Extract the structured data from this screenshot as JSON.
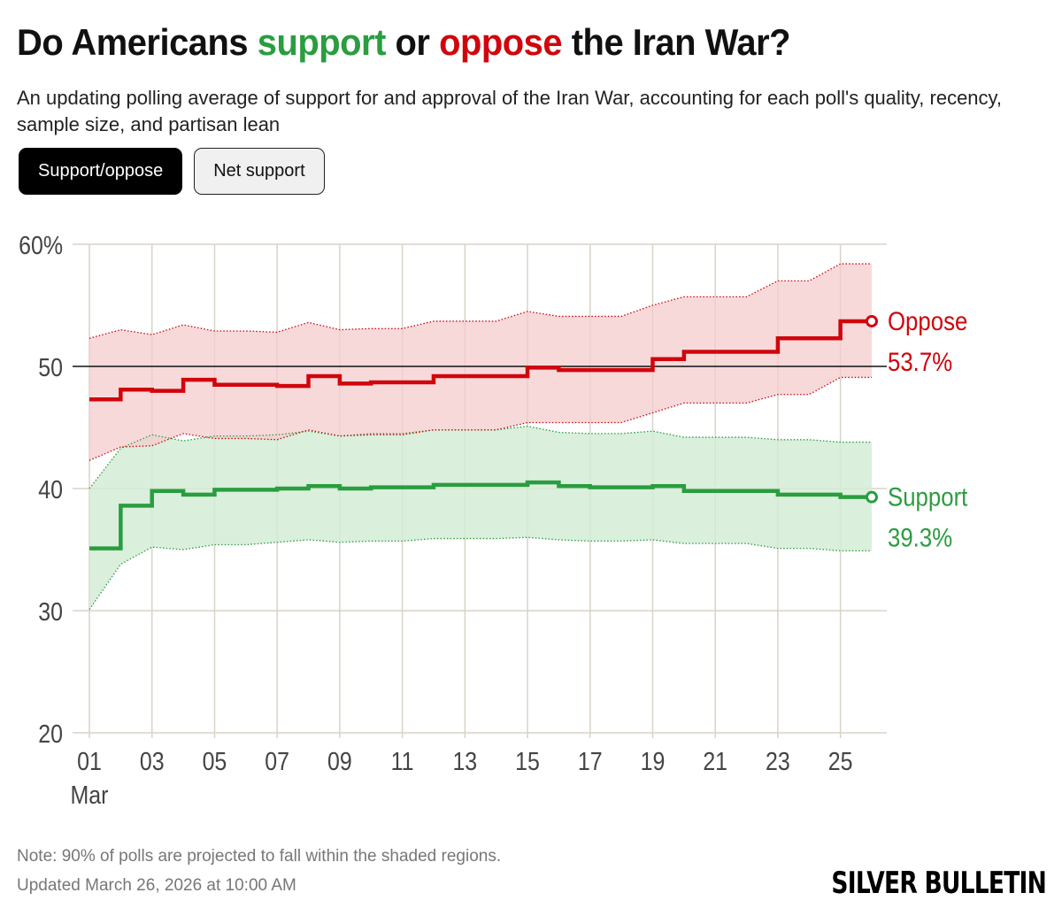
{
  "header": {
    "title_prefix": "Do Americans ",
    "title_support": "support",
    "title_or": " or ",
    "title_oppose": "oppose",
    "title_suffix": " the Iran War?",
    "subtitle": "An updating polling average of support for and approval of the Iran War, accounting for each poll's quality, recency, sample size, and partisan lean"
  },
  "tabs": [
    {
      "label": "Support/oppose",
      "active": true
    },
    {
      "label": "Net support",
      "active": false
    }
  ],
  "colors": {
    "support": "#2a9d3f",
    "oppose": "#d0050c",
    "support_band": "#d4ecd6",
    "oppose_band": "#f6cccd",
    "grid": "#d8d3c7",
    "reference": "#111111"
  },
  "chart_data": {
    "type": "line",
    "title": "Do Americans support or oppose the Iran War?",
    "x": [
      1,
      2,
      3,
      4,
      5,
      6,
      7,
      8,
      9,
      10,
      11,
      12,
      13,
      14,
      15,
      16,
      17,
      18,
      19,
      20,
      21,
      22,
      23,
      24,
      25,
      26
    ],
    "x_tick_values": [
      1,
      3,
      5,
      7,
      9,
      11,
      13,
      15,
      17,
      19,
      21,
      23,
      25
    ],
    "x_tick_labels": [
      "01",
      "03",
      "05",
      "07",
      "09",
      "11",
      "13",
      "15",
      "17",
      "19",
      "21",
      "23",
      "25"
    ],
    "x_month_label": "Mar",
    "y_ticks": [
      20,
      30,
      40,
      50,
      60
    ],
    "y_tick_labels": [
      "20",
      "30",
      "40",
      "50",
      "60%"
    ],
    "ylim": [
      20,
      60
    ],
    "xlim": [
      1,
      26
    ],
    "reference_line": 50,
    "series": [
      {
        "name": "Oppose",
        "key": "oppose",
        "end_label": "53.7%",
        "values": [
          47.3,
          48.1,
          48.0,
          48.9,
          48.5,
          48.5,
          48.4,
          49.2,
          48.6,
          48.7,
          48.7,
          49.2,
          49.2,
          49.2,
          49.9,
          49.7,
          49.7,
          49.7,
          50.6,
          51.2,
          51.2,
          51.2,
          52.3,
          52.3,
          53.7,
          53.7
        ],
        "upper": [
          52.3,
          53.0,
          52.6,
          53.4,
          52.9,
          52.9,
          52.8,
          53.6,
          53.0,
          53.1,
          53.1,
          53.7,
          53.7,
          53.7,
          54.5,
          54.1,
          54.1,
          54.1,
          55.0,
          55.7,
          55.7,
          55.7,
          57.0,
          57.0,
          58.4,
          58.4
        ],
        "lower": [
          42.3,
          43.4,
          43.5,
          44.5,
          44.1,
          44.1,
          44.0,
          44.8,
          44.3,
          44.4,
          44.4,
          44.8,
          44.8,
          44.8,
          45.4,
          45.4,
          45.4,
          45.4,
          46.2,
          47.0,
          47.0,
          47.0,
          47.7,
          47.7,
          49.1,
          49.1
        ]
      },
      {
        "name": "Support",
        "key": "support",
        "end_label": "39.3%",
        "values": [
          35.1,
          38.6,
          39.8,
          39.5,
          39.9,
          39.9,
          40.0,
          40.2,
          40.0,
          40.1,
          40.1,
          40.3,
          40.3,
          40.3,
          40.5,
          40.2,
          40.1,
          40.1,
          40.2,
          39.8,
          39.8,
          39.8,
          39.5,
          39.5,
          39.3,
          39.3
        ],
        "upper": [
          40.0,
          43.3,
          44.4,
          43.9,
          44.3,
          44.3,
          44.4,
          44.7,
          44.3,
          44.5,
          44.5,
          44.8,
          44.8,
          44.8,
          45.1,
          44.6,
          44.5,
          44.5,
          44.7,
          44.2,
          44.2,
          44.2,
          44.0,
          44.0,
          43.8,
          43.8
        ],
        "lower": [
          30.1,
          33.8,
          35.2,
          35.0,
          35.4,
          35.4,
          35.6,
          35.8,
          35.6,
          35.7,
          35.7,
          35.9,
          35.9,
          35.9,
          36.0,
          35.8,
          35.7,
          35.7,
          35.8,
          35.5,
          35.5,
          35.5,
          35.1,
          35.1,
          34.9,
          34.9
        ]
      }
    ]
  },
  "footer": {
    "note": "Note: 90% of polls are projected to fall within the shaded regions.",
    "updated": "Updated March 26, 2026 at 10:00 AM",
    "brand": "SILVER BULLETIN"
  }
}
